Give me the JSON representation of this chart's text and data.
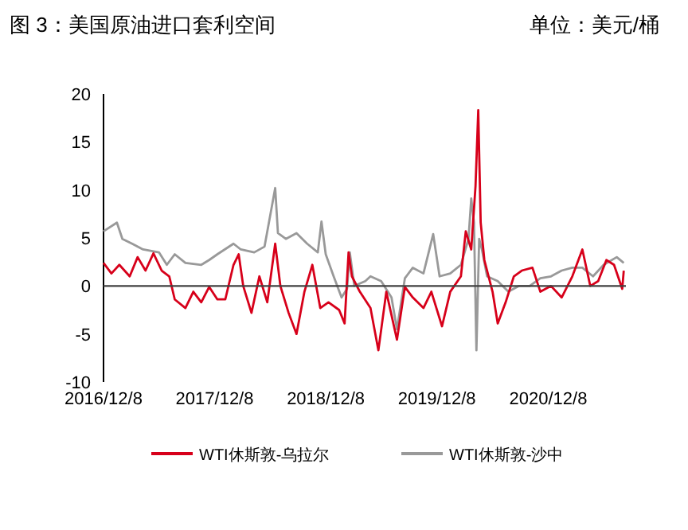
{
  "chart_data": {
    "type": "line",
    "title": "图 3：美国原油进口套利空间",
    "ylabel": "单位：美元/桶",
    "xlim": [
      "2016-12-08",
      "2021-08-20"
    ],
    "ylim": [
      -10,
      20
    ],
    "xticks": [
      {
        "value": "2016-12-08",
        "label": "2016/12/8"
      },
      {
        "value": "2017-12-08",
        "label": "2017/12/8"
      },
      {
        "value": "2018-12-08",
        "label": "2018/12/8"
      },
      {
        "value": "2019-12-08",
        "label": "2019/12/8"
      },
      {
        "value": "2020-12-08",
        "label": "2020/12/8"
      }
    ],
    "yticks": [
      -10,
      -5,
      0,
      5,
      10,
      15,
      20
    ],
    "grid": false,
    "legend": "bottom",
    "line_style": "solid",
    "ref_lines": [
      {
        "axis": "y",
        "value": 0,
        "color": "#404040"
      }
    ],
    "series": [
      {
        "name": "WTI休斯敦-乌拉尔",
        "color": "#d7001a",
        "x": [
          "2016-12-08",
          "2017-01-03",
          "2017-01-29",
          "2017-03-04",
          "2017-03-30",
          "2017-04-25",
          "2017-05-21",
          "2017-06-17",
          "2017-07-12",
          "2017-07-30",
          "2017-09-03",
          "2017-09-29",
          "2017-10-25",
          "2017-11-20",
          "2017-12-17",
          "2018-01-12",
          "2018-02-08",
          "2018-02-25",
          "2018-03-12",
          "2018-04-08",
          "2018-05-04",
          "2018-05-30",
          "2018-06-25",
          "2018-07-12",
          "2018-08-08",
          "2018-09-03",
          "2018-09-29",
          "2018-10-25",
          "2018-11-20",
          "2018-12-17",
          "2019-01-21",
          "2019-02-08",
          "2019-02-21",
          "2019-03-04",
          "2019-03-30",
          "2019-05-04",
          "2019-05-30",
          "2019-06-25",
          "2019-07-30",
          "2019-08-25",
          "2019-09-20",
          "2019-10-25",
          "2019-11-20",
          "2019-12-25",
          "2020-01-21",
          "2020-02-25",
          "2020-03-12",
          "2020-03-30",
          "2020-04-13",
          "2020-04-22",
          "2020-04-30",
          "2020-05-12",
          "2020-06-08",
          "2020-06-25",
          "2020-07-21",
          "2020-08-17",
          "2020-09-12",
          "2020-10-17",
          "2020-11-12",
          "2020-12-17",
          "2021-01-21",
          "2021-02-25",
          "2021-03-30",
          "2021-04-25",
          "2021-05-21",
          "2021-06-17",
          "2021-07-12",
          "2021-08-08",
          "2021-08-13"
        ],
        "values": [
          2.4,
          1.3,
          2.2,
          1.0,
          3.0,
          1.6,
          3.4,
          1.6,
          1.0,
          -1.4,
          -2.3,
          -0.6,
          -1.7,
          -0.1,
          -1.4,
          -1.4,
          2.2,
          3.3,
          0.0,
          -2.8,
          1.0,
          -1.7,
          4.4,
          0.0,
          -2.8,
          -5.0,
          -0.6,
          2.2,
          -2.3,
          -1.7,
          -2.5,
          -3.9,
          3.5,
          1.0,
          -0.6,
          -2.3,
          -6.7,
          -0.6,
          -5.6,
          -0.1,
          -1.2,
          -2.3,
          -0.6,
          -4.2,
          -0.6,
          1.0,
          5.7,
          3.8,
          10.4,
          18.3,
          6.6,
          2.7,
          -0.6,
          -3.9,
          -1.7,
          1.0,
          1.6,
          1.9,
          -0.6,
          0.0,
          -1.2,
          1.0,
          3.8,
          0.0,
          0.5,
          2.7,
          2.2,
          -0.3,
          1.6
        ]
      },
      {
        "name": "WTI休斯敦-沙中",
        "color": "#999999",
        "x": [
          "2016-12-08",
          "2017-01-21",
          "2017-02-08",
          "2017-03-12",
          "2017-04-17",
          "2017-06-08",
          "2017-07-04",
          "2017-07-30",
          "2017-09-03",
          "2017-10-25",
          "2017-11-20",
          "2017-12-17",
          "2018-02-08",
          "2018-03-04",
          "2018-04-17",
          "2018-05-21",
          "2018-06-25",
          "2018-07-04",
          "2018-07-30",
          "2018-09-03",
          "2018-10-08",
          "2018-11-12",
          "2018-11-24",
          "2018-12-08",
          "2019-01-03",
          "2019-01-29",
          "2019-02-16",
          "2019-02-25",
          "2019-03-12",
          "2019-04-17",
          "2019-05-04",
          "2019-06-08",
          "2019-07-12",
          "2019-07-30",
          "2019-08-25",
          "2019-09-20",
          "2019-10-25",
          "2019-11-26",
          "2019-12-17",
          "2020-01-21",
          "2020-02-25",
          "2020-03-21",
          "2020-03-30",
          "2020-04-08",
          "2020-04-16",
          "2020-04-25",
          "2020-05-04",
          "2020-05-21",
          "2020-06-25",
          "2020-07-30",
          "2020-09-03",
          "2020-10-08",
          "2020-11-12",
          "2020-12-17",
          "2021-01-21",
          "2021-02-25",
          "2021-03-30",
          "2021-05-04",
          "2021-06-08",
          "2021-07-21",
          "2021-08-13"
        ],
        "values": [
          5.7,
          6.6,
          4.9,
          4.4,
          3.8,
          3.5,
          2.2,
          3.3,
          2.4,
          2.2,
          2.7,
          3.3,
          4.4,
          3.8,
          3.5,
          4.1,
          10.2,
          5.5,
          4.9,
          5.5,
          4.4,
          3.5,
          6.7,
          3.3,
          1.0,
          -1.2,
          -0.3,
          3.5,
          0.0,
          0.5,
          1.0,
          0.5,
          -1.2,
          -4.5,
          0.8,
          1.9,
          1.3,
          5.4,
          1.0,
          1.3,
          2.2,
          4.9,
          9.1,
          6.6,
          -6.7,
          4.9,
          3.8,
          1.0,
          0.5,
          -0.6,
          0.0,
          0.0,
          0.8,
          1.0,
          1.6,
          1.9,
          1.9,
          1.0,
          2.2,
          3.0,
          2.4
        ]
      }
    ]
  }
}
